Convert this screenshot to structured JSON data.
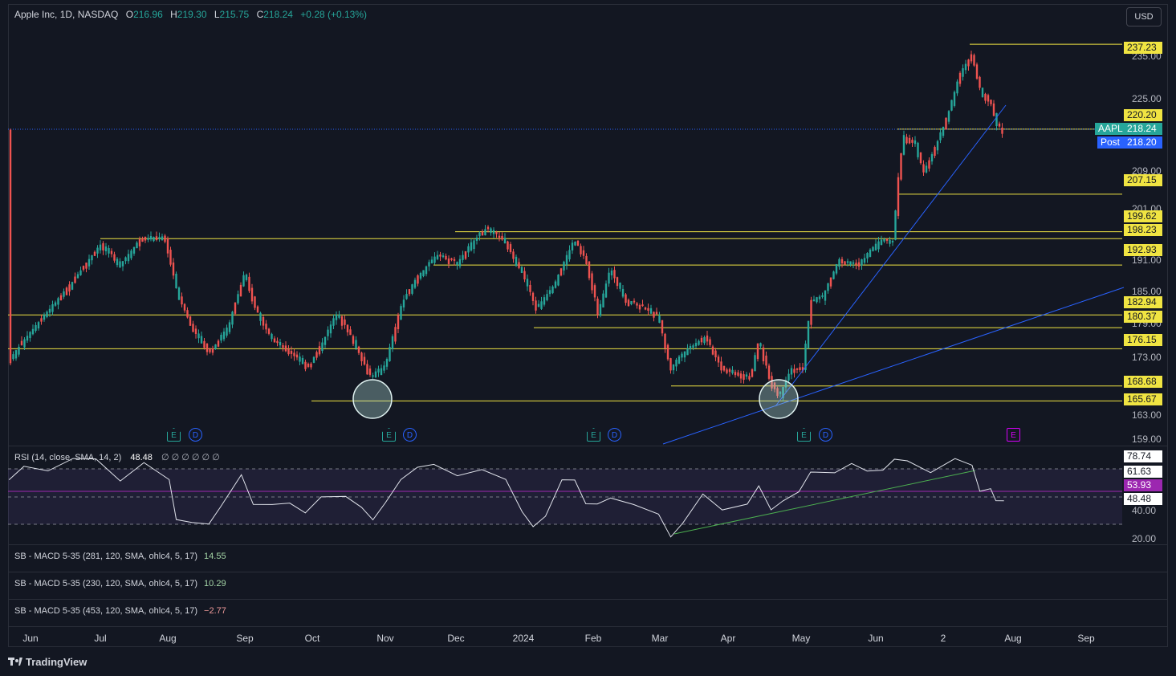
{
  "header": {
    "symbol": "Apple Inc, 1D, NASDAQ",
    "o_label": "O",
    "o_val": "216.96",
    "h_label": "H",
    "h_val": "219.30",
    "l_label": "L",
    "l_val": "215.75",
    "c_label": "C",
    "c_val": "218.24",
    "change": "+0.28 (+0.13%)"
  },
  "currency": "USD",
  "price_axis": [
    "235.00",
    "225.00",
    "209.00",
    "201.00",
    "191.00",
    "185.00",
    "179.00",
    "173.00",
    "163.00",
    "159.00"
  ],
  "level_tags": [
    "237.23",
    "220.20",
    "207.15",
    "199.62",
    "198.23",
    "192.93",
    "182.94",
    "180.37",
    "176.15",
    "168.68",
    "165.67"
  ],
  "symbol_tag": {
    "name": "AAPL",
    "price": "218.24"
  },
  "post_tag": {
    "name": "Post",
    "price": "218.20"
  },
  "rsi": {
    "label": "RSI (14, close, SMA, 14, 2)",
    "value": "48.48",
    "nulls": "∅ ∅ ∅ ∅ ∅ ∅",
    "axis_tags": [
      "78.74",
      "61.63",
      "53.93",
      "48.48"
    ],
    "axis": [
      "40.00",
      "20.00"
    ]
  },
  "macd_panes": [
    {
      "label": "SB - MACD 5-35 (281, 120, SMA, ohlc4, 5, 17)",
      "value": "14.55"
    },
    {
      "label": "SB - MACD 5-35 (230, 120, SMA, ohlc4, 5, 17)",
      "value": "10.29"
    },
    {
      "label": "SB - MACD 5-35 (453, 120, SMA, ohlc4, 5, 17)",
      "value": "−2.77"
    }
  ],
  "time_axis": [
    "Jun",
    "Jul",
    "Aug",
    "Sep",
    "Oct",
    "Nov",
    "Dec",
    "2024",
    "Feb",
    "Mar",
    "Apr",
    "May",
    "Jun",
    "2",
    "Aug",
    "Sep"
  ],
  "events": [
    {
      "e": "E",
      "d": "D"
    },
    {
      "e": "E",
      "d": "D"
    },
    {
      "e": "E",
      "d": "D"
    },
    {
      "e": "E",
      "d": "D"
    },
    {
      "e": "E"
    }
  ],
  "brand": "TradingView",
  "colors": {
    "up": "#26a69a",
    "down": "#ef5350",
    "level": "#f0e442",
    "trend": "#2962ff",
    "rsi_band": "#7e57c2"
  }
}
